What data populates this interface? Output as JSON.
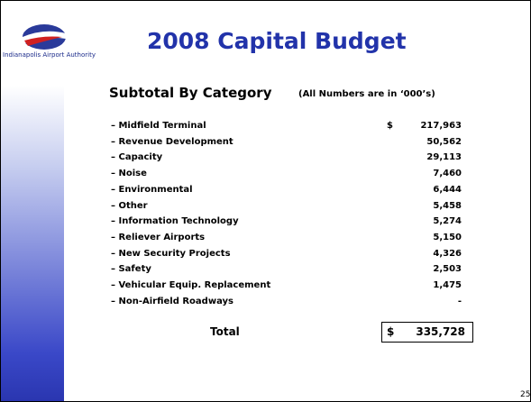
{
  "header": {
    "logo_text": "Indianapolis Airport Authority",
    "title": "2008 Capital Budget"
  },
  "section": {
    "subtitle": "Subtotal By Category",
    "note": "(All Numbers are in ‘000’s)"
  },
  "table": {
    "rows": [
      [
        "– Midfield Terminal",
        "$",
        "217,963"
      ],
      [
        "– Revenue Development",
        "",
        "50,562"
      ],
      [
        "– Capacity",
        "",
        "29,113"
      ],
      [
        "– Noise",
        "",
        "7,460"
      ],
      [
        "– Environmental",
        "",
        "6,444"
      ],
      [
        "– Other",
        "",
        "5,458"
      ],
      [
        "– Information Technology",
        "",
        "5,274"
      ],
      [
        "– Reliever Airports",
        "",
        "5,150"
      ],
      [
        "– New Security Projects",
        "",
        "4,326"
      ],
      [
        "– Safety",
        "",
        "2,503"
      ],
      [
        "– Vehicular Equip. Replacement",
        "",
        "1,475"
      ],
      [
        "– Non-Airfield Roadways",
        "",
        "-"
      ]
    ],
    "total": {
      "label": "Total",
      "currency": "$",
      "value": "335,728"
    }
  },
  "page_number": "25"
}
